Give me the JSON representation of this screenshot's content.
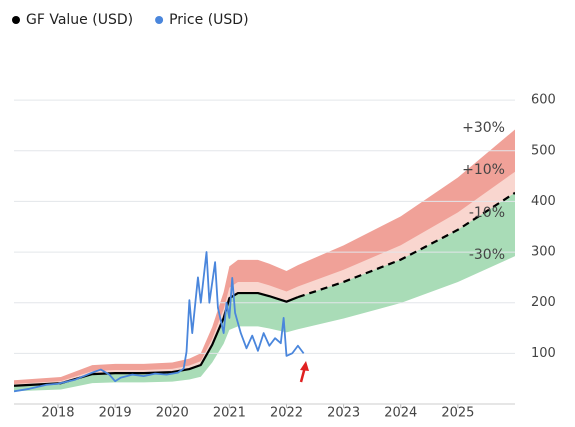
{
  "chart_data": {
    "type": "line",
    "xlim": [
      2017.23,
      2026.0
    ],
    "xticks": [
      2018,
      2019,
      2020,
      2021,
      2022,
      2023,
      2024,
      2025
    ],
    "ylim": [
      0,
      620
    ],
    "yticks": [
      100,
      200,
      300,
      400,
      500,
      600
    ],
    "grid": true,
    "legend": "top-left",
    "bands": [
      {
        "label": "+30%",
        "value": 30,
        "color": "#f0a198"
      },
      {
        "label": "+10%",
        "value": 10,
        "color": "#f9d6cf"
      },
      {
        "label": "-10%",
        "value": -10,
        "color": "#d5eddb"
      },
      {
        "label": "-30%",
        "value": -30,
        "color": "#a9dcb7"
      }
    ],
    "series": [
      {
        "name": "GF Value (USD)",
        "color": "#000000",
        "dashed_x_from": 2022.2,
        "x": [
          2017.23,
          2018.05,
          2018.6,
          2019.0,
          2019.5,
          2020.0,
          2020.3,
          2020.5,
          2020.7,
          2020.9,
          2021.0,
          2021.15,
          2021.5,
          2021.7,
          2022.0,
          2022.2,
          2023.0,
          2024.0,
          2025.0,
          2026.0
        ],
        "values": [
          36,
          41,
          59,
          61,
          61,
          63,
          69,
          77,
          117,
          170,
          209,
          219,
          219,
          213,
          202,
          211,
          241,
          285,
          344,
          417
        ]
      },
      {
        "name": "Price (USD)",
        "color": "#4a86dc",
        "x": [
          2017.23,
          2017.5,
          2017.8,
          2018.0,
          2018.3,
          2018.6,
          2018.75,
          2018.9,
          2019.0,
          2019.1,
          2019.3,
          2019.5,
          2019.7,
          2019.9,
          2020.1,
          2020.2,
          2020.25,
          2020.3,
          2020.35,
          2020.45,
          2020.5,
          2020.6,
          2020.65,
          2020.75,
          2020.8,
          2020.9,
          2020.95,
          2021.0,
          2021.05,
          2021.1,
          2021.2,
          2021.3,
          2021.4,
          2021.5,
          2021.6,
          2021.7,
          2021.8,
          2021.9,
          2021.95,
          2022.0,
          2022.1,
          2022.2,
          2022.3
        ],
        "values": [
          25,
          30,
          38,
          40,
          48,
          62,
          68,
          58,
          45,
          52,
          58,
          55,
          60,
          58,
          62,
          70,
          103,
          205,
          140,
          250,
          200,
          300,
          200,
          280,
          190,
          140,
          200,
          170,
          249,
          180,
          140,
          110,
          135,
          105,
          140,
          115,
          130,
          120,
          170,
          95,
          100,
          115,
          100
        ]
      }
    ]
  }
}
